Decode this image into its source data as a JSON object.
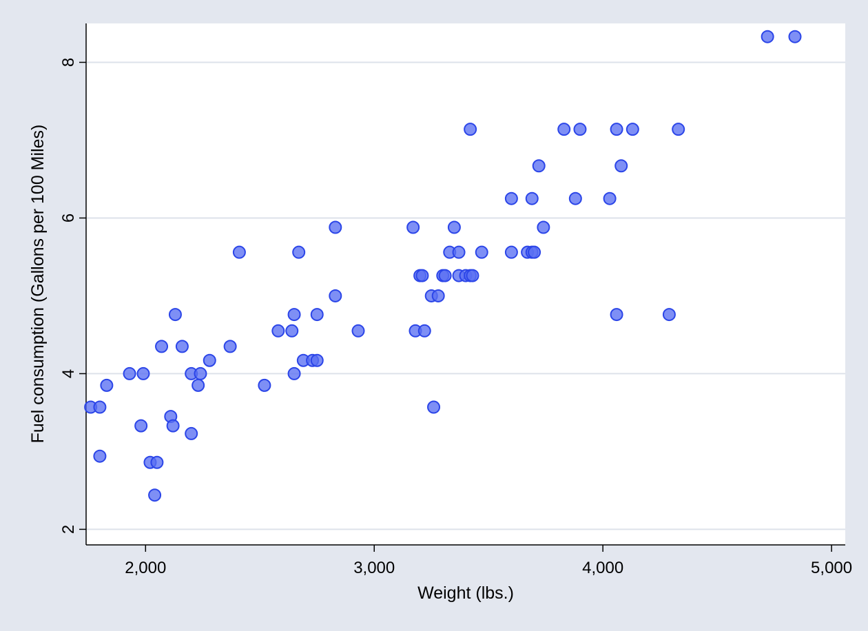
{
  "chart_data": {
    "type": "scatter",
    "title": "",
    "xlabel": "Weight (lbs.)",
    "ylabel": "Fuel consumption (Gallons per 100 Miles)",
    "xlim": [
      1740,
      5060
    ],
    "ylim": [
      1.8,
      8.5
    ],
    "xticks": [
      2000,
      3000,
      4000,
      5000
    ],
    "xtick_labels": [
      "2,000",
      "3,000",
      "4,000",
      "5,000"
    ],
    "yticks": [
      2,
      4,
      6,
      8
    ],
    "ytick_labels": [
      "2",
      "4",
      "6",
      "8"
    ],
    "grid": "horizontal",
    "marker_color": "#5a6ff2",
    "marker_edge": "#2b45e8",
    "plot_background": "#ffffff",
    "page_background": "#e3e7ef",
    "points": [
      {
        "x": 1760,
        "y": 3.57
      },
      {
        "x": 1800,
        "y": 3.57
      },
      {
        "x": 1800,
        "y": 2.94
      },
      {
        "x": 1830,
        "y": 3.85
      },
      {
        "x": 1930,
        "y": 4.0
      },
      {
        "x": 1980,
        "y": 3.33
      },
      {
        "x": 1990,
        "y": 4.0
      },
      {
        "x": 2020,
        "y": 2.86
      },
      {
        "x": 2040,
        "y": 2.44
      },
      {
        "x": 2050,
        "y": 2.86
      },
      {
        "x": 2070,
        "y": 4.35
      },
      {
        "x": 2110,
        "y": 3.45
      },
      {
        "x": 2120,
        "y": 3.33
      },
      {
        "x": 2130,
        "y": 4.76
      },
      {
        "x": 2160,
        "y": 4.35
      },
      {
        "x": 2200,
        "y": 4.0
      },
      {
        "x": 2200,
        "y": 3.23
      },
      {
        "x": 2230,
        "y": 3.85
      },
      {
        "x": 2240,
        "y": 4.0
      },
      {
        "x": 2280,
        "y": 4.17
      },
      {
        "x": 2370,
        "y": 4.35
      },
      {
        "x": 2410,
        "y": 5.56
      },
      {
        "x": 2520,
        "y": 3.85
      },
      {
        "x": 2580,
        "y": 4.55
      },
      {
        "x": 2640,
        "y": 4.55
      },
      {
        "x": 2650,
        "y": 4.76
      },
      {
        "x": 2650,
        "y": 4.0
      },
      {
        "x": 2670,
        "y": 5.56
      },
      {
        "x": 2690,
        "y": 4.17
      },
      {
        "x": 2730,
        "y": 4.17
      },
      {
        "x": 2750,
        "y": 4.17
      },
      {
        "x": 2750,
        "y": 4.76
      },
      {
        "x": 2830,
        "y": 5.88
      },
      {
        "x": 2830,
        "y": 5.0
      },
      {
        "x": 2930,
        "y": 4.55
      },
      {
        "x": 3170,
        "y": 5.88
      },
      {
        "x": 3180,
        "y": 4.55
      },
      {
        "x": 3200,
        "y": 5.26
      },
      {
        "x": 3210,
        "y": 5.26
      },
      {
        "x": 3220,
        "y": 4.55
      },
      {
        "x": 3250,
        "y": 5.0
      },
      {
        "x": 3260,
        "y": 3.57
      },
      {
        "x": 3280,
        "y": 5.0
      },
      {
        "x": 3300,
        "y": 5.26
      },
      {
        "x": 3310,
        "y": 5.26
      },
      {
        "x": 3330,
        "y": 5.56
      },
      {
        "x": 3350,
        "y": 5.88
      },
      {
        "x": 3370,
        "y": 5.56
      },
      {
        "x": 3370,
        "y": 5.26
      },
      {
        "x": 3400,
        "y": 5.26
      },
      {
        "x": 3420,
        "y": 5.26
      },
      {
        "x": 3420,
        "y": 7.14
      },
      {
        "x": 3430,
        "y": 5.26
      },
      {
        "x": 3470,
        "y": 5.56
      },
      {
        "x": 3600,
        "y": 6.25
      },
      {
        "x": 3600,
        "y": 5.56
      },
      {
        "x": 3670,
        "y": 5.56
      },
      {
        "x": 3690,
        "y": 5.56
      },
      {
        "x": 3690,
        "y": 6.25
      },
      {
        "x": 3700,
        "y": 5.56
      },
      {
        "x": 3720,
        "y": 6.67
      },
      {
        "x": 3740,
        "y": 5.88
      },
      {
        "x": 3830,
        "y": 7.14
      },
      {
        "x": 3880,
        "y": 6.25
      },
      {
        "x": 3900,
        "y": 7.14
      },
      {
        "x": 4030,
        "y": 6.25
      },
      {
        "x": 4060,
        "y": 7.14
      },
      {
        "x": 4060,
        "y": 4.76
      },
      {
        "x": 4080,
        "y": 6.67
      },
      {
        "x": 4130,
        "y": 7.14
      },
      {
        "x": 4290,
        "y": 4.76
      },
      {
        "x": 4330,
        "y": 7.14
      },
      {
        "x": 4720,
        "y": 8.33
      },
      {
        "x": 4840,
        "y": 8.33
      }
    ]
  }
}
